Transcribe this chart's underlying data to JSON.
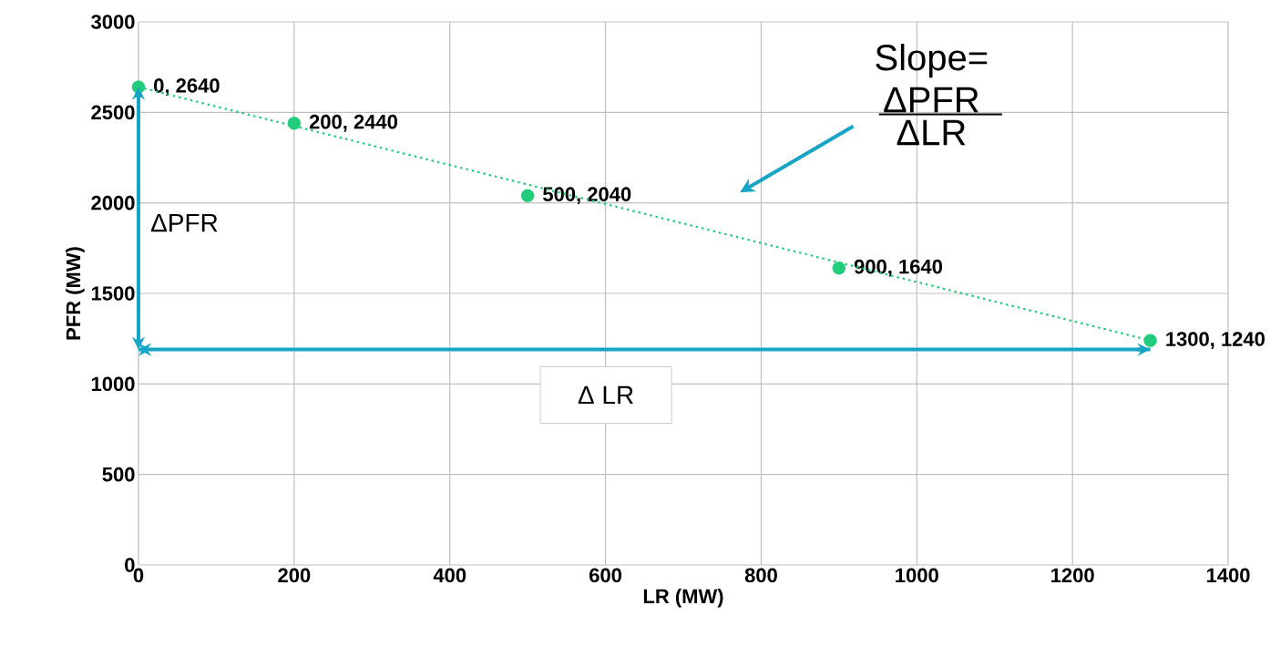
{
  "chart_data": {
    "type": "scatter",
    "xlabel": "LR (MW)",
    "ylabel": "PFR (MW)",
    "xlim": [
      0,
      1400
    ],
    "ylim": [
      0,
      3000
    ],
    "xticks": [
      0,
      200,
      400,
      600,
      800,
      1000,
      1200,
      1400
    ],
    "yticks": [
      0,
      500,
      1000,
      1500,
      2000,
      2500,
      3000
    ],
    "grid": true,
    "series": [
      {
        "color": "#22cc7a",
        "marker": "circle",
        "x": [
          0,
          200,
          500,
          900,
          1300
        ],
        "values": [
          2640,
          2440,
          2040,
          1640,
          1240
        ],
        "value_labels": [
          "0, 2640",
          "200, 2440",
          "500, 2040",
          "900, 1640",
          "1300, 1240"
        ]
      },
      {
        "type": "line",
        "color": "#22cc7a",
        "marker": "none",
        "line_style": "dotted",
        "x": [
          0,
          1300
        ],
        "values": [
          2640,
          1240
        ]
      }
    ],
    "ref_lines": [
      {
        "axis": "y",
        "value": 1190,
        "label": "Δ LR",
        "color": "#17a4c6"
      }
    ],
    "annotations": [
      "ΔPFR",
      "Slope=",
      "ΔPFR",
      "ΔLR"
    ]
  }
}
